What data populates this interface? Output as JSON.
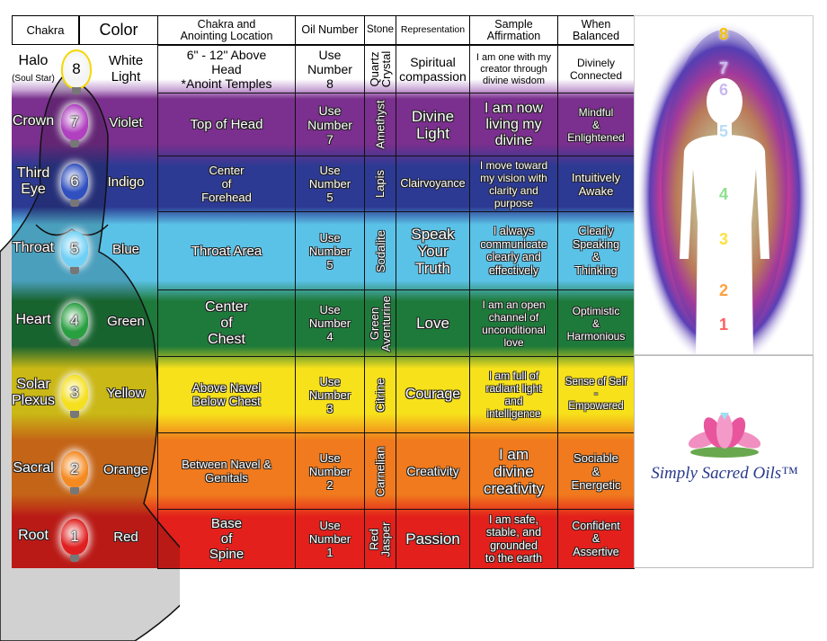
{
  "header": {
    "chakra": "Chakra",
    "color": "Color",
    "location": "Chakra and\nAnointing Location",
    "oil": "Oil Number",
    "stone": "Stone",
    "representation": "Representation",
    "affirmation": "Sample\nAffirmation",
    "balanced": "When\nBalanced"
  },
  "rows": [
    {
      "number": "8",
      "chakra": "Halo",
      "chakra_sub": "(Soul Star)",
      "color": "White\nLight",
      "location": "6\" - 12\" Above\nHead\n*Anoint Temples",
      "oil": "Use\nNumber\n8",
      "stone": "Quartz\nCrystal",
      "representation": "Spiritual\ncompassion",
      "affirmation": "I am one with my\ncreator through\ndivine wisdom",
      "balanced": "Divinely\nConnected",
      "hex": "#ffffff"
    },
    {
      "number": "7",
      "chakra": "Crown",
      "color": "Violet",
      "location": "Top of Head",
      "oil": "Use\nNumber\n7",
      "stone": "Amethyst",
      "representation": "Divine\nLight",
      "affirmation": "I am now\nliving my\ndivine",
      "balanced": "Mindful\n&\nEnlightened",
      "hex": "#7b2f8e"
    },
    {
      "number": "6",
      "chakra": "Third\nEye",
      "color": "Indigo",
      "location": "Center\nof\nForehead",
      "oil": "Use\nNumber\n5",
      "stone": "Lapis",
      "representation": "Clairvoyance",
      "affirmation": "I move toward\nmy vision with\nclarity and\npurpose",
      "balanced": "Intuitively\nAwake",
      "hex": "#2c3a93"
    },
    {
      "number": "5",
      "chakra": "Throat",
      "color": "Blue",
      "location": "Throat Area",
      "oil": "Use\nNumber\n5",
      "stone": "Sodalite",
      "representation": "Speak\nYour\nTruth",
      "affirmation": "I always\ncommunicate\nclearly and\neffectively",
      "balanced": "Clearly\nSpeaking\n&\nThinking",
      "hex": "#5bc2e7"
    },
    {
      "number": "4",
      "chakra": "Heart",
      "color": "Green",
      "location": "Center\nof\nChest",
      "oil": "Use\nNumber\n4",
      "stone": "Green\nAventurine",
      "representation": "Love",
      "affirmation": "I am an open\nchannel of\nunconditional\nlove",
      "balanced": "Optimistic\n&\nHarmonious",
      "hex": "#1e7a3a"
    },
    {
      "number": "3",
      "chakra": "Solar\nPlexus",
      "color": "Yellow",
      "location": "Above Navel\nBelow Chest",
      "oil": "Use\nNumber\n3",
      "stone": "Citrine",
      "representation": "Courage",
      "affirmation": "I am full of\nradiant light\nand\nintelligence",
      "balanced": "Sense of Self\n-\nEmpowered",
      "hex": "#f7e11b"
    },
    {
      "number": "2",
      "chakra": "Sacral",
      "color": "Orange",
      "location": "Between Navel &\nGenitals",
      "oil": "Use\nNumber\n2",
      "stone": "Carnelian",
      "representation": "Creativity",
      "affirmation": "I am\ndivine\ncreativity",
      "balanced": "Sociable\n&\nEnergetic",
      "hex": "#f07a1d"
    },
    {
      "number": "1",
      "chakra": "Root",
      "color": "Red",
      "location": "Base\nof\nSpine",
      "oil": "Use\nNumber\n1",
      "stone": "Red\nJasper",
      "representation": "Passion",
      "affirmation": "I am safe,\nstable, and\ngrounded\nto the earth",
      "balanced": "Confident\n&\nAssertive",
      "hex": "#e3201b"
    }
  ],
  "aura_numbers": [
    "8",
    "7",
    "6",
    "5",
    "4",
    "3",
    "2",
    "1"
  ],
  "logo": {
    "text": "Simply Sacred Oils™"
  }
}
